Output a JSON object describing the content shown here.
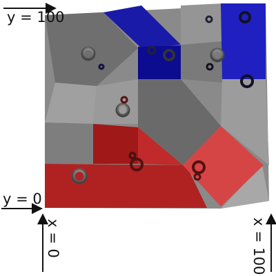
{
  "labels": {
    "y_top": "y = 100",
    "y_bottom": "y = 0",
    "x_left": "x = 0",
    "x_right": "x = 100"
  }
}
